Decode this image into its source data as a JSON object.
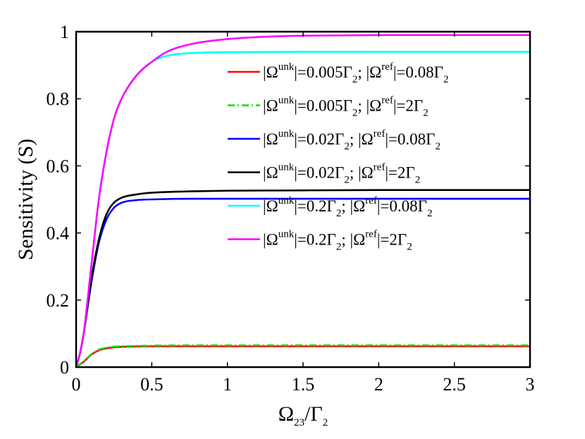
{
  "chart_data": {
    "type": "line",
    "title": "",
    "xlabel": {
      "main": "Ω",
      "sub1": "23",
      "sep": "/Γ",
      "sub2": "2"
    },
    "ylabel": "Sensitivity (S)",
    "xlim": [
      0,
      3
    ],
    "ylim": [
      0,
      1
    ],
    "xticks": [
      "0",
      "0.5",
      "1",
      "1.5",
      "2",
      "2.5",
      "3"
    ],
    "xtick_values": [
      0,
      0.5,
      1,
      1.5,
      2,
      2.5,
      3
    ],
    "yticks": [
      "0",
      "0.2",
      "0.4",
      "0.6",
      "0.8",
      "1"
    ],
    "ytick_values": [
      0,
      0.2,
      0.4,
      0.6,
      0.8,
      1
    ],
    "grid": false,
    "legend_position": "top-right",
    "series": [
      {
        "name": "|Ω^unk|=0.005Γ_2; |Ω^ref|=0.08Γ_2",
        "legend": {
          "unk": "0.005",
          "ref": "0.08"
        },
        "color": "#ff0000",
        "dash": "solid",
        "x": [
          0,
          0.05,
          0.1,
          0.15,
          0.2,
          0.25,
          0.3,
          0.4,
          0.5,
          0.75,
          1,
          1.5,
          2,
          2.5,
          3
        ],
        "y": [
          0,
          0.016,
          0.037,
          0.05,
          0.056,
          0.059,
          0.0605,
          0.0615,
          0.062,
          0.062,
          0.062,
          0.062,
          0.062,
          0.062,
          0.062
        ]
      },
      {
        "name": "|Ω^unk|=0.005Γ_2; |Ω^ref|=2Γ_2",
        "legend": {
          "unk": "0.005",
          "ref": "2"
        },
        "color": "#00dd00",
        "dash": "dashdot",
        "x": [
          0,
          0.05,
          0.1,
          0.15,
          0.2,
          0.25,
          0.3,
          0.4,
          0.5,
          0.75,
          1,
          1.5,
          2,
          2.5,
          3
        ],
        "y": [
          0,
          0.017,
          0.038,
          0.052,
          0.058,
          0.061,
          0.062,
          0.063,
          0.064,
          0.065,
          0.065,
          0.065,
          0.065,
          0.065,
          0.065
        ]
      },
      {
        "name": "|Ω^unk|=0.02Γ_2; |Ω^ref|=0.08Γ_2",
        "legend": {
          "unk": "0.02",
          "ref": "0.08"
        },
        "color": "#0000ff",
        "dash": "solid",
        "x": [
          0,
          0.025,
          0.05,
          0.1,
          0.15,
          0.2,
          0.25,
          0.3,
          0.4,
          0.5,
          0.75,
          1,
          1.5,
          2,
          2.5,
          3
        ],
        "y": [
          0,
          0.04,
          0.1,
          0.25,
          0.37,
          0.44,
          0.475,
          0.49,
          0.498,
          0.5,
          0.502,
          0.502,
          0.502,
          0.502,
          0.502,
          0.502
        ]
      },
      {
        "name": "|Ω^unk|=0.02Γ_2; |Ω^ref|=2Γ_2",
        "legend": {
          "unk": "0.02",
          "ref": "2"
        },
        "color": "#000000",
        "dash": "solid",
        "x": [
          0,
          0.025,
          0.05,
          0.1,
          0.15,
          0.2,
          0.25,
          0.3,
          0.4,
          0.5,
          0.75,
          1,
          1.5,
          2,
          2.5,
          3
        ],
        "y": [
          0,
          0.04,
          0.1,
          0.26,
          0.38,
          0.455,
          0.49,
          0.505,
          0.515,
          0.52,
          0.524,
          0.526,
          0.527,
          0.528,
          0.528,
          0.528
        ]
      },
      {
        "name": "|Ω^unk|=0.2Γ_2; |Ω^ref|=0.08Γ_2",
        "legend": {
          "unk": "0.2",
          "ref": "0.08"
        },
        "color": "#00ffff",
        "dash": "solid",
        "x": [
          0,
          0.025,
          0.05,
          0.1,
          0.15,
          0.2,
          0.25,
          0.3,
          0.4,
          0.5,
          0.6,
          0.75,
          1,
          1.5,
          2,
          2.5,
          3
        ],
        "y": [
          0,
          0.04,
          0.1,
          0.3,
          0.5,
          0.64,
          0.74,
          0.8,
          0.87,
          0.91,
          0.928,
          0.936,
          0.939,
          0.94,
          0.94,
          0.94,
          0.94
        ]
      },
      {
        "name": "|Ω^unk|=0.2Γ_2; |Ω^ref|=2Γ_2",
        "legend": {
          "unk": "0.2",
          "ref": "2"
        },
        "color": "#ff00ff",
        "dash": "solid",
        "x": [
          0,
          0.025,
          0.05,
          0.1,
          0.15,
          0.2,
          0.25,
          0.3,
          0.4,
          0.5,
          0.6,
          0.75,
          1,
          1.25,
          1.5,
          2,
          2.5,
          3
        ],
        "y": [
          0,
          0.04,
          0.1,
          0.3,
          0.5,
          0.64,
          0.74,
          0.8,
          0.87,
          0.91,
          0.94,
          0.962,
          0.978,
          0.985,
          0.988,
          0.99,
          0.99,
          0.99
        ]
      }
    ]
  }
}
